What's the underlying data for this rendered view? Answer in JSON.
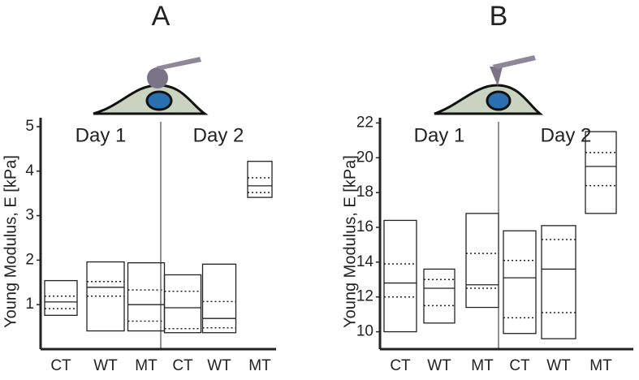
{
  "chart_data": [
    {
      "type": "box",
      "title": "A",
      "ylabel": "Young Modulus, E [kPa]",
      "groups": [
        "Day 1",
        "Day 2"
      ],
      "categories": [
        "CT",
        "WT",
        "MT",
        "CT",
        "WT",
        "MT"
      ],
      "boxes": [
        {
          "low": 0.76,
          "q1": 0.91,
          "median": 1.06,
          "q3": 1.19,
          "high": 1.54
        },
        {
          "low": 0.41,
          "q1": 1.19,
          "median": 1.39,
          "q3": 1.52,
          "high": 1.96
        },
        {
          "low": 0.41,
          "q1": 0.63,
          "median": 1.0,
          "q3": 1.33,
          "high": 1.94
        },
        {
          "low": 0.37,
          "q1": 0.46,
          "median": 0.93,
          "q3": 1.3,
          "high": 1.67
        },
        {
          "low": 0.37,
          "q1": 0.48,
          "median": 0.69,
          "q3": 1.07,
          "high": 1.91
        },
        {
          "low": 3.41,
          "q1": 3.52,
          "median": 3.67,
          "q3": 3.85,
          "high": 4.22
        }
      ],
      "ylim": [
        0,
        5.2
      ],
      "yticks": [
        1,
        2,
        3,
        4,
        5
      ]
    },
    {
      "type": "box",
      "title": "B",
      "ylabel": "Young Modulus, E [kPa]",
      "groups": [
        "Day 1",
        "Day 2"
      ],
      "categories": [
        "CT",
        "WT",
        "MT",
        "CT",
        "WT",
        "MT"
      ],
      "boxes": [
        {
          "low": 10.0,
          "q1": 12.0,
          "median": 12.8,
          "q3": 13.9,
          "high": 16.4
        },
        {
          "low": 10.5,
          "q1": 11.5,
          "median": 12.5,
          "q3": 13.0,
          "high": 13.6
        },
        {
          "low": 11.4,
          "q1": 12.5,
          "median": 12.7,
          "q3": 14.5,
          "high": 16.8
        },
        {
          "low": 9.9,
          "q1": 10.8,
          "median": 13.1,
          "q3": 14.1,
          "high": 15.8
        },
        {
          "low": 9.6,
          "q1": 11.1,
          "median": 13.6,
          "q3": 15.3,
          "high": 16.1
        },
        {
          "low": 16.8,
          "q1": 18.4,
          "median": 19.5,
          "q3": 20.3,
          "high": 21.5
        }
      ],
      "ylim": [
        9,
        22.3
      ],
      "yticks": [
        10,
        12,
        14,
        16,
        18,
        20,
        22
      ]
    }
  ]
}
